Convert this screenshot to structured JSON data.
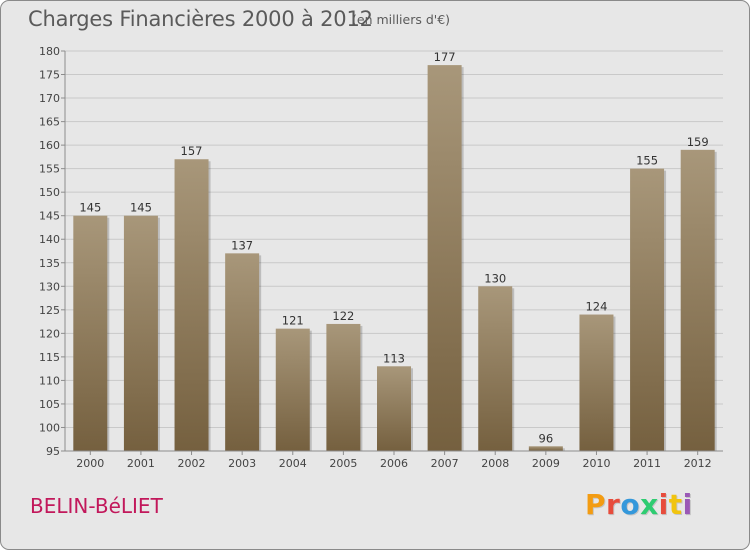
{
  "header": {
    "title": "Charges Financières 2000 à 2012",
    "subtitle": "(en milliers d'€)"
  },
  "footer": {
    "town": "BELIN-BéLIET",
    "logo": "Proxiti"
  },
  "colors": {
    "bar_top": "#a8977a",
    "bar_bottom": "#75603f",
    "grid": "#c9c9c9",
    "axis": "#8c8c8c",
    "plot_bg": "#e7e7e7",
    "town": "#c2185b"
  },
  "chart_data": {
    "type": "bar",
    "title": "Charges Financières 2000 à 2012",
    "subtitle": "(en milliers d'€)",
    "categories": [
      "2000",
      "2001",
      "2002",
      "2003",
      "2004",
      "2005",
      "2006",
      "2007",
      "2008",
      "2009",
      "2010",
      "2011",
      "2012"
    ],
    "values": [
      145,
      145,
      157,
      137,
      121,
      122,
      113,
      177,
      130,
      96,
      124,
      155,
      159
    ],
    "ylim": [
      95,
      180
    ],
    "ytick_step": 5,
    "xlabel": "",
    "ylabel": "",
    "grid": "horizontal",
    "legend": "none"
  }
}
